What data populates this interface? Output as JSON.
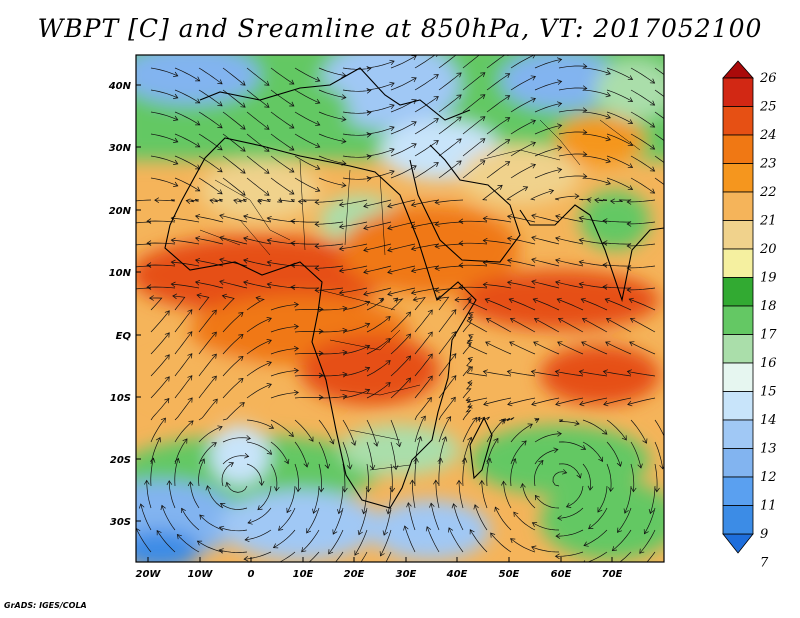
{
  "title": "WBPT [C] and Sreamline at 850hPa, VT: 2017052100",
  "map": {
    "lat_ticks": [
      "40N",
      "30N",
      "20N",
      "10N",
      "EQ",
      "10S",
      "20S",
      "30S"
    ],
    "lon_ticks": [
      "20W",
      "10W",
      "0",
      "10E",
      "20E",
      "30E",
      "40E",
      "50E",
      "60E",
      "70E"
    ],
    "lat_range": [
      -36,
      45
    ],
    "lon_range": [
      -22,
      80
    ]
  },
  "colorbar": {
    "levels": [
      "7",
      "9",
      "11",
      "12",
      "13",
      "14",
      "15",
      "16",
      "17",
      "18",
      "19",
      "20",
      "21",
      "22",
      "23",
      "24",
      "25",
      "26"
    ],
    "colors": [
      "#1e6edc",
      "#3c8ce6",
      "#5aa0f0",
      "#82b4f0",
      "#a0c8f5",
      "#c8e4fa",
      "#e6f6f0",
      "#aadeaa",
      "#64c864",
      "#32aa32",
      "#f5f0a0",
      "#f0d28c",
      "#f5b45a",
      "#f5961e",
      "#f07814",
      "#e65014",
      "#d22814",
      "#aa0a0a"
    ]
  },
  "credit": "GrADS: IGES/COLA"
}
